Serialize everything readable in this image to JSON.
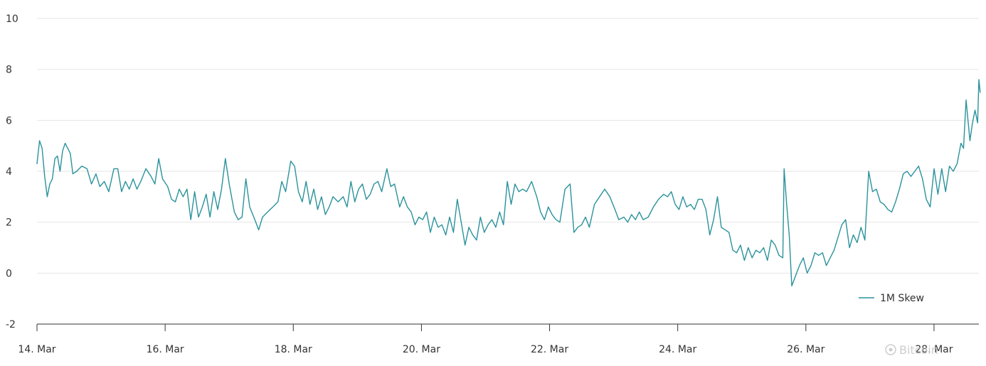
{
  "chart_data": {
    "type": "line",
    "title": "",
    "xlabel": "",
    "ylabel": "",
    "ylim": [
      -2,
      10
    ],
    "y_ticks": [
      -2,
      0,
      2,
      4,
      6,
      8,
      10
    ],
    "y_tick_labels": [
      "-2",
      "0",
      "2",
      "4",
      "6",
      "8",
      "10"
    ],
    "x_ticks": [
      14,
      16,
      18,
      20,
      22,
      24,
      26,
      28
    ],
    "x_tick_labels": [
      "14. Mar",
      "16. Mar",
      "18. Mar",
      "20. Mar",
      "22. Mar",
      "24. Mar",
      "26. Mar",
      "28. Mar"
    ],
    "x_range": [
      14,
      28.7
    ],
    "grid": "horizontal",
    "legend_position": "bottom-right",
    "series": [
      {
        "name": "1M Skew",
        "color": "#2b929c",
        "x_unit": "March (day, fractional)",
        "points": [
          [
            14.0,
            4.3
          ],
          [
            14.04,
            5.2
          ],
          [
            14.08,
            4.9
          ],
          [
            14.12,
            3.8
          ],
          [
            14.16,
            3.0
          ],
          [
            14.2,
            3.5
          ],
          [
            14.24,
            3.7
          ],
          [
            14.28,
            4.5
          ],
          [
            14.32,
            4.6
          ],
          [
            14.36,
            4.0
          ],
          [
            14.4,
            4.8
          ],
          [
            14.44,
            5.1
          ],
          [
            14.48,
            4.9
          ],
          [
            14.52,
            4.7
          ],
          [
            14.56,
            3.9
          ],
          [
            14.62,
            4.0
          ],
          [
            14.7,
            4.2
          ],
          [
            14.78,
            4.1
          ],
          [
            14.85,
            3.5
          ],
          [
            14.92,
            3.9
          ],
          [
            14.98,
            3.4
          ],
          [
            15.05,
            3.6
          ],
          [
            15.12,
            3.2
          ],
          [
            15.2,
            4.1
          ],
          [
            15.26,
            4.1
          ],
          [
            15.32,
            3.2
          ],
          [
            15.38,
            3.6
          ],
          [
            15.44,
            3.3
          ],
          [
            15.5,
            3.7
          ],
          [
            15.56,
            3.3
          ],
          [
            15.62,
            3.6
          ],
          [
            15.7,
            4.1
          ],
          [
            15.78,
            3.8
          ],
          [
            15.84,
            3.5
          ],
          [
            15.9,
            4.5
          ],
          [
            15.96,
            3.7
          ],
          [
            16.04,
            3.4
          ],
          [
            16.1,
            2.9
          ],
          [
            16.16,
            2.8
          ],
          [
            16.22,
            3.3
          ],
          [
            16.28,
            3.0
          ],
          [
            16.34,
            3.3
          ],
          [
            16.4,
            2.1
          ],
          [
            16.46,
            3.2
          ],
          [
            16.52,
            2.2
          ],
          [
            16.58,
            2.6
          ],
          [
            16.64,
            3.1
          ],
          [
            16.7,
            2.2
          ],
          [
            16.76,
            3.2
          ],
          [
            16.82,
            2.5
          ],
          [
            16.88,
            3.3
          ],
          [
            16.94,
            4.5
          ],
          [
            17.0,
            3.5
          ],
          [
            17.08,
            2.4
          ],
          [
            17.14,
            2.1
          ],
          [
            17.2,
            2.2
          ],
          [
            17.26,
            3.7
          ],
          [
            17.32,
            2.6
          ],
          [
            17.4,
            2.1
          ],
          [
            17.46,
            1.7
          ],
          [
            17.52,
            2.2
          ],
          [
            17.6,
            2.4
          ],
          [
            17.68,
            2.6
          ],
          [
            17.76,
            2.8
          ],
          [
            17.82,
            3.6
          ],
          [
            17.88,
            3.2
          ],
          [
            17.96,
            4.4
          ],
          [
            18.02,
            4.2
          ],
          [
            18.08,
            3.2
          ],
          [
            18.14,
            2.8
          ],
          [
            18.2,
            3.6
          ],
          [
            18.26,
            2.7
          ],
          [
            18.32,
            3.3
          ],
          [
            18.38,
            2.5
          ],
          [
            18.44,
            3.0
          ],
          [
            18.5,
            2.3
          ],
          [
            18.56,
            2.6
          ],
          [
            18.62,
            3.0
          ],
          [
            18.7,
            2.8
          ],
          [
            18.78,
            3.0
          ],
          [
            18.84,
            2.6
          ],
          [
            18.9,
            3.6
          ],
          [
            18.96,
            2.8
          ],
          [
            19.02,
            3.3
          ],
          [
            19.08,
            3.5
          ],
          [
            19.14,
            2.9
          ],
          [
            19.2,
            3.1
          ],
          [
            19.26,
            3.5
          ],
          [
            19.32,
            3.6
          ],
          [
            19.38,
            3.2
          ],
          [
            19.46,
            4.1
          ],
          [
            19.52,
            3.4
          ],
          [
            19.58,
            3.5
          ],
          [
            19.66,
            2.6
          ],
          [
            19.72,
            3.0
          ],
          [
            19.78,
            2.6
          ],
          [
            19.84,
            2.4
          ],
          [
            19.9,
            1.9
          ],
          [
            19.96,
            2.2
          ],
          [
            20.02,
            2.1
          ],
          [
            20.08,
            2.4
          ],
          [
            20.14,
            1.6
          ],
          [
            20.2,
            2.2
          ],
          [
            20.26,
            1.8
          ],
          [
            20.32,
            1.9
          ],
          [
            20.38,
            1.5
          ],
          [
            20.44,
            2.2
          ],
          [
            20.5,
            1.6
          ],
          [
            20.56,
            2.9
          ],
          [
            20.62,
            2.0
          ],
          [
            20.68,
            1.1
          ],
          [
            20.74,
            1.8
          ],
          [
            20.8,
            1.5
          ],
          [
            20.86,
            1.3
          ],
          [
            20.92,
            2.2
          ],
          [
            20.98,
            1.6
          ],
          [
            21.04,
            1.9
          ],
          [
            21.1,
            2.1
          ],
          [
            21.16,
            1.8
          ],
          [
            21.22,
            2.4
          ],
          [
            21.28,
            1.9
          ],
          [
            21.34,
            3.6
          ],
          [
            21.4,
            2.7
          ],
          [
            21.46,
            3.5
          ],
          [
            21.52,
            3.2
          ],
          [
            21.58,
            3.3
          ],
          [
            21.64,
            3.2
          ],
          [
            21.72,
            3.6
          ],
          [
            21.8,
            3.0
          ],
          [
            21.86,
            2.4
          ],
          [
            21.92,
            2.1
          ],
          [
            21.98,
            2.6
          ],
          [
            22.04,
            2.3
          ],
          [
            22.1,
            2.1
          ],
          [
            22.16,
            2.0
          ],
          [
            22.24,
            3.3
          ],
          [
            22.32,
            3.5
          ],
          [
            22.38,
            1.6
          ],
          [
            22.44,
            1.8
          ],
          [
            22.5,
            1.9
          ],
          [
            22.56,
            2.2
          ],
          [
            22.62,
            1.8
          ],
          [
            22.7,
            2.7
          ],
          [
            22.78,
            3.0
          ],
          [
            22.86,
            3.3
          ],
          [
            22.94,
            3.0
          ],
          [
            23.02,
            2.5
          ],
          [
            23.08,
            2.1
          ],
          [
            23.16,
            2.2
          ],
          [
            23.22,
            2.0
          ],
          [
            23.28,
            2.3
          ],
          [
            23.34,
            2.1
          ],
          [
            23.4,
            2.4
          ],
          [
            23.46,
            2.1
          ],
          [
            23.54,
            2.2
          ],
          [
            23.62,
            2.6
          ],
          [
            23.7,
            2.9
          ],
          [
            23.78,
            3.1
          ],
          [
            23.84,
            3.0
          ],
          [
            23.9,
            3.2
          ],
          [
            23.96,
            2.7
          ],
          [
            24.02,
            2.5
          ],
          [
            24.08,
            3.0
          ],
          [
            24.14,
            2.6
          ],
          [
            24.2,
            2.7
          ],
          [
            24.26,
            2.5
          ],
          [
            24.32,
            2.9
          ],
          [
            24.38,
            2.9
          ],
          [
            24.44,
            2.5
          ],
          [
            24.5,
            1.5
          ],
          [
            24.56,
            2.1
          ],
          [
            24.62,
            3.0
          ],
          [
            24.68,
            1.8
          ],
          [
            24.74,
            1.7
          ],
          [
            24.8,
            1.6
          ],
          [
            24.86,
            0.9
          ],
          [
            24.92,
            0.8
          ],
          [
            24.98,
            1.1
          ],
          [
            25.04,
            0.5
          ],
          [
            25.1,
            1.0
          ],
          [
            25.16,
            0.6
          ],
          [
            25.22,
            0.9
          ],
          [
            25.28,
            0.8
          ],
          [
            25.34,
            1.0
          ],
          [
            25.4,
            0.5
          ],
          [
            25.46,
            1.3
          ],
          [
            25.52,
            1.1
          ],
          [
            25.58,
            0.7
          ],
          [
            25.64,
            0.6
          ],
          [
            25.66,
            4.1
          ],
          [
            25.7,
            2.7
          ],
          [
            25.74,
            1.5
          ],
          [
            25.78,
            -0.5
          ],
          [
            25.84,
            -0.1
          ],
          [
            25.9,
            0.3
          ],
          [
            25.96,
            0.6
          ],
          [
            26.02,
            0.0
          ],
          [
            26.08,
            0.3
          ],
          [
            26.14,
            0.8
          ],
          [
            26.2,
            0.7
          ],
          [
            26.26,
            0.8
          ],
          [
            26.32,
            0.3
          ],
          [
            26.38,
            0.6
          ],
          [
            26.44,
            0.9
          ],
          [
            26.5,
            1.4
          ],
          [
            26.56,
            1.9
          ],
          [
            26.62,
            2.1
          ],
          [
            26.68,
            1.0
          ],
          [
            26.74,
            1.5
          ],
          [
            26.8,
            1.2
          ],
          [
            26.86,
            1.8
          ],
          [
            26.92,
            1.3
          ],
          [
            26.98,
            4.0
          ],
          [
            27.04,
            3.2
          ],
          [
            27.1,
            3.3
          ],
          [
            27.16,
            2.8
          ],
          [
            27.22,
            2.7
          ],
          [
            27.28,
            2.5
          ],
          [
            27.34,
            2.4
          ],
          [
            27.4,
            2.8
          ],
          [
            27.46,
            3.3
          ],
          [
            27.52,
            3.9
          ],
          [
            27.58,
            4.0
          ],
          [
            27.64,
            3.8
          ],
          [
            27.7,
            4.0
          ],
          [
            27.76,
            4.2
          ],
          [
            27.82,
            3.7
          ],
          [
            27.88,
            2.9
          ],
          [
            27.94,
            2.6
          ],
          [
            28.0,
            4.1
          ],
          [
            28.06,
            3.1
          ],
          [
            28.12,
            4.1
          ],
          [
            28.18,
            3.2
          ],
          [
            28.24,
            4.2
          ],
          [
            28.3,
            4.0
          ],
          [
            28.36,
            4.3
          ],
          [
            28.42,
            5.1
          ],
          [
            28.46,
            4.9
          ],
          [
            28.5,
            6.8
          ],
          [
            28.56,
            5.2
          ],
          [
            28.6,
            5.9
          ],
          [
            28.64,
            6.4
          ],
          [
            28.68,
            5.9
          ],
          [
            28.7,
            7.6
          ],
          [
            28.72,
            7.1
          ]
        ]
      }
    ]
  },
  "watermark": {
    "text": "Bitcoin",
    "color": "#c8c8c8"
  },
  "colors": {
    "grid": "#e6e6e6",
    "axis": "#333333",
    "text": "#333333"
  }
}
